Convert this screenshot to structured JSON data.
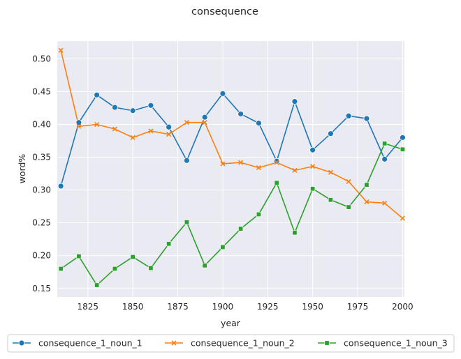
{
  "chart_data": {
    "type": "line",
    "title": "consequence",
    "xlabel": "year",
    "ylabel": "word%",
    "xlim": [
      1808,
      2001
    ],
    "ylim": [
      0.137,
      0.527
    ],
    "xticks": [
      1825,
      1850,
      1875,
      1900,
      1925,
      1950,
      1975,
      2000
    ],
    "yticks": [
      0.15,
      0.2,
      0.25,
      0.3,
      0.35,
      0.4,
      0.45,
      0.5
    ],
    "ytick_labels": [
      "0.15",
      "0.20",
      "0.25",
      "0.30",
      "0.35",
      "0.40",
      "0.45",
      "0.50"
    ],
    "x": [
      1810,
      1820,
      1830,
      1840,
      1850,
      1860,
      1870,
      1880,
      1890,
      1900,
      1910,
      1920,
      1930,
      1940,
      1950,
      1960,
      1970,
      1980,
      1990,
      2000
    ],
    "series": [
      {
        "name": "consequence_1_noun_1",
        "color": "#1f77b4",
        "marker": "circle",
        "values": [
          0.306,
          0.403,
          0.445,
          0.426,
          0.421,
          0.429,
          0.396,
          0.345,
          0.411,
          0.447,
          0.416,
          0.402,
          0.344,
          0.435,
          0.361,
          0.386,
          0.413,
          0.409,
          0.347,
          0.38
        ]
      },
      {
        "name": "consequence_1_noun_2",
        "color": "#ff7f0e",
        "marker": "x",
        "values": [
          0.513,
          0.397,
          0.4,
          0.393,
          0.38,
          0.39,
          0.385,
          0.403,
          0.403,
          0.34,
          0.342,
          0.334,
          0.342,
          0.33,
          0.336,
          0.327,
          0.313,
          0.282,
          0.28,
          0.257
        ]
      },
      {
        "name": "consequence_1_noun_3",
        "color": "#2ca02c",
        "marker": "square",
        "values": [
          0.18,
          0.199,
          0.155,
          0.18,
          0.198,
          0.181,
          0.218,
          0.251,
          0.185,
          0.213,
          0.241,
          0.263,
          0.311,
          0.235,
          0.302,
          0.285,
          0.274,
          0.308,
          0.371,
          0.362
        ]
      }
    ],
    "grid": true,
    "legend_position": "bottom"
  }
}
